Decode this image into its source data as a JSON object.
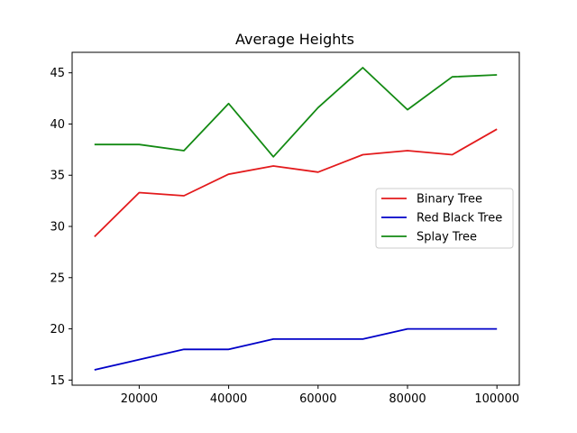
{
  "chart_data": {
    "type": "line",
    "title": "Average Heights",
    "xlabel": "",
    "ylabel": "",
    "x": [
      10000,
      20000,
      30000,
      40000,
      50000,
      60000,
      70000,
      80000,
      90000,
      100000
    ],
    "xlim": [
      5000,
      105000
    ],
    "ylim": [
      14.5,
      47
    ],
    "xticks": [
      20000,
      40000,
      60000,
      80000,
      100000
    ],
    "yticks": [
      15,
      20,
      25,
      30,
      35,
      40,
      45
    ],
    "grid": false,
    "legend_position": "center-right",
    "series": [
      {
        "name": "Binary Tree",
        "color": "#e31a1c",
        "values": [
          29.0,
          33.3,
          33.0,
          35.1,
          35.9,
          35.3,
          37.0,
          37.4,
          37.0,
          39.5
        ]
      },
      {
        "name": "Red Black Tree",
        "color": "#0000c8",
        "values": [
          16,
          17,
          18,
          18,
          19,
          19,
          19,
          20,
          20,
          20
        ]
      },
      {
        "name": "Splay Tree",
        "color": "#138a13",
        "values": [
          38.0,
          38.0,
          37.4,
          42.0,
          36.8,
          41.6,
          45.5,
          41.4,
          44.6,
          44.8
        ]
      }
    ]
  }
}
